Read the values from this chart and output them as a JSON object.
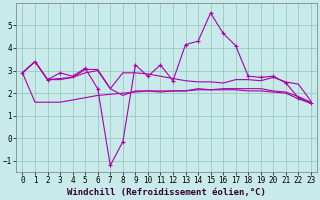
{
  "bg_color": "#c8eaea",
  "line_color": "#aa00aa",
  "grid_color": "#99ccbb",
  "xlabel": "Windchill (Refroidissement éolien,°C)",
  "xlim": [
    -0.5,
    23.5
  ],
  "ylim": [
    -1.5,
    6.0
  ],
  "yticks": [
    -1,
    0,
    1,
    2,
    3,
    4,
    5
  ],
  "xticks": [
    0,
    1,
    2,
    3,
    4,
    5,
    6,
    7,
    8,
    9,
    10,
    11,
    12,
    13,
    14,
    15,
    16,
    17,
    18,
    19,
    20,
    21,
    22,
    23
  ],
  "series1_x": [
    0,
    1,
    2,
    3,
    4,
    5,
    6,
    7,
    8,
    9,
    10,
    11,
    12,
    13,
    14,
    15,
    16,
    17,
    18,
    19,
    20,
    21,
    22,
    23
  ],
  "series1_y": [
    2.9,
    3.4,
    2.6,
    2.65,
    2.7,
    3.05,
    3.05,
    2.2,
    1.9,
    2.1,
    2.1,
    2.05,
    2.1,
    2.1,
    2.2,
    2.15,
    2.2,
    2.2,
    2.2,
    2.2,
    2.1,
    2.05,
    1.85,
    1.6
  ],
  "series2_x": [
    0,
    1,
    2,
    3,
    4,
    5,
    6,
    7,
    8,
    9,
    10,
    11,
    12,
    13,
    14,
    15,
    16,
    17,
    18,
    19,
    20,
    21,
    22,
    23
  ],
  "series2_y": [
    2.9,
    3.4,
    2.6,
    2.6,
    2.7,
    2.9,
    3.0,
    2.2,
    2.9,
    2.9,
    2.85,
    2.75,
    2.65,
    2.55,
    2.5,
    2.5,
    2.45,
    2.6,
    2.6,
    2.55,
    2.7,
    2.5,
    2.4,
    1.65
  ],
  "series3_x": [
    0,
    1,
    2,
    3,
    4,
    5,
    6,
    7,
    8,
    9,
    10,
    11,
    12,
    13,
    14,
    15,
    16,
    17,
    18,
    19,
    20,
    21,
    22,
    23
  ],
  "series3_y": [
    2.9,
    1.6,
    1.6,
    1.6,
    1.7,
    1.8,
    1.9,
    1.95,
    2.0,
    2.05,
    2.1,
    2.1,
    2.1,
    2.1,
    2.15,
    2.15,
    2.15,
    2.15,
    2.1,
    2.1,
    2.05,
    2.0,
    1.75,
    1.55
  ],
  "series4_x": [
    0,
    1,
    2,
    3,
    4,
    5,
    6,
    7,
    8,
    9,
    10,
    11,
    12,
    13,
    14,
    15,
    16,
    17,
    18,
    19,
    20,
    21,
    22,
    23
  ],
  "series4_y": [
    2.9,
    3.4,
    2.6,
    2.9,
    2.75,
    3.1,
    2.2,
    -1.2,
    -0.15,
    3.25,
    2.75,
    3.25,
    2.55,
    4.15,
    4.3,
    5.55,
    4.65,
    4.1,
    2.75,
    2.7,
    2.75,
    2.45,
    1.8,
    1.55
  ],
  "xlabel_fontsize": 6.5,
  "tick_fontsize": 5.5
}
